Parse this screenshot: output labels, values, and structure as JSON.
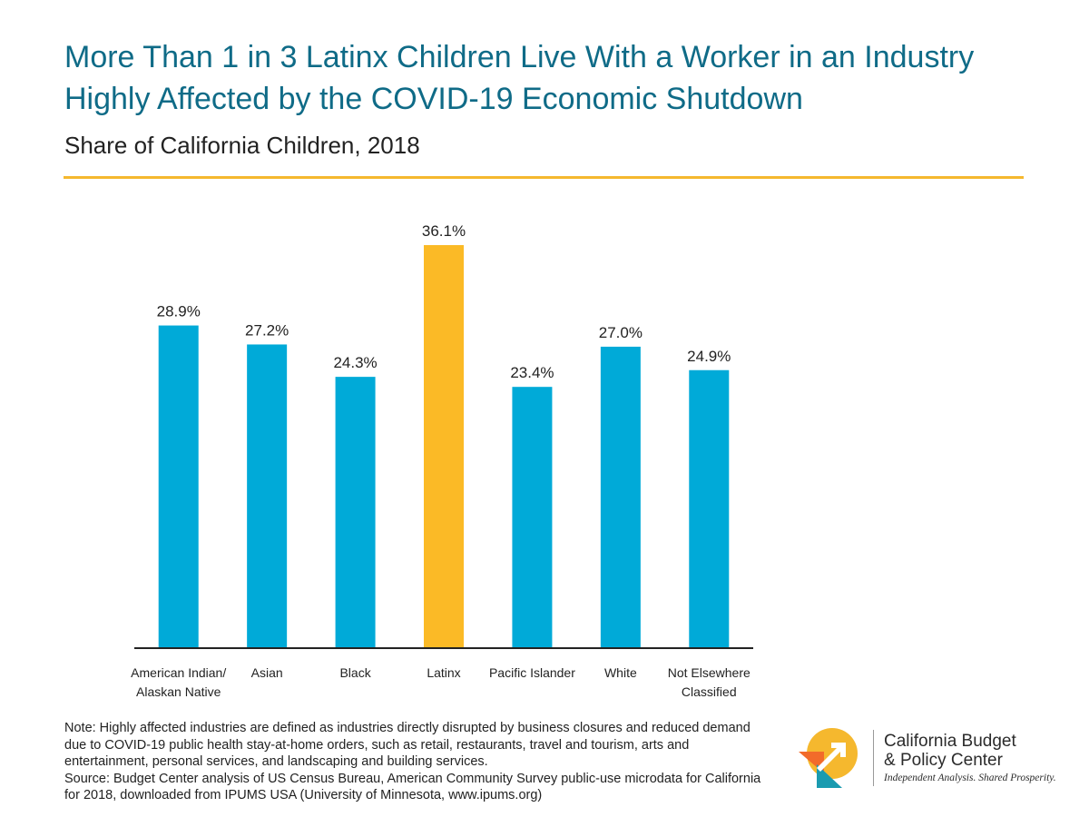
{
  "header": {
    "title": "More Than 1 in 3 Latinx Children Live With a Worker in an Industry Highly Affected by the COVID-19 Economic Shutdown",
    "subtitle": "Share of California Children, 2018"
  },
  "colors": {
    "title": "#0f6b87",
    "accent_rule": "#f5b82e",
    "bar_default": "#00aad8",
    "bar_highlight": "#fbba26",
    "axis": "#222222"
  },
  "chart_data": {
    "type": "bar",
    "title": "More Than 1 in 3 Latinx Children Live With a Worker in an Industry Highly Affected by the COVID-19 Economic Shutdown",
    "subtitle": "Share of California Children, 2018",
    "xlabel": "",
    "ylabel": "",
    "ylim": [
      0,
      40
    ],
    "grid": false,
    "categories": [
      [
        "American Indian/",
        "Alaskan Native"
      ],
      [
        "Asian"
      ],
      [
        "Black"
      ],
      [
        "Latinx"
      ],
      [
        "Pacific Islander"
      ],
      [
        "White"
      ],
      [
        "Not Elsewhere",
        "Classified"
      ]
    ],
    "values": [
      28.9,
      27.2,
      24.3,
      36.1,
      23.4,
      27.0,
      24.9
    ],
    "data_labels": [
      "28.9%",
      "27.2%",
      "24.3%",
      "36.1%",
      "23.4%",
      "27.0%",
      "24.9%"
    ],
    "highlight_index": 3
  },
  "footer": {
    "note": "Note: Highly affected industries are defined as industries directly disrupted by business closures and reduced demand due to COVID-19 public health stay-at-home orders, such as retail, restaurants, travel and tourism, arts and entertainment, personal services, and landscaping and building services.",
    "source": "Source: Budget Center analysis of US Census Bureau, American Community Survey public-use microdata for California for 2018, downloaded from IPUMS USA (University of Minnesota, www.ipums.org)"
  },
  "logo": {
    "line1": "California Budget",
    "line2": "& Policy Center",
    "tagline": "Independent Analysis. Shared Prosperity."
  }
}
